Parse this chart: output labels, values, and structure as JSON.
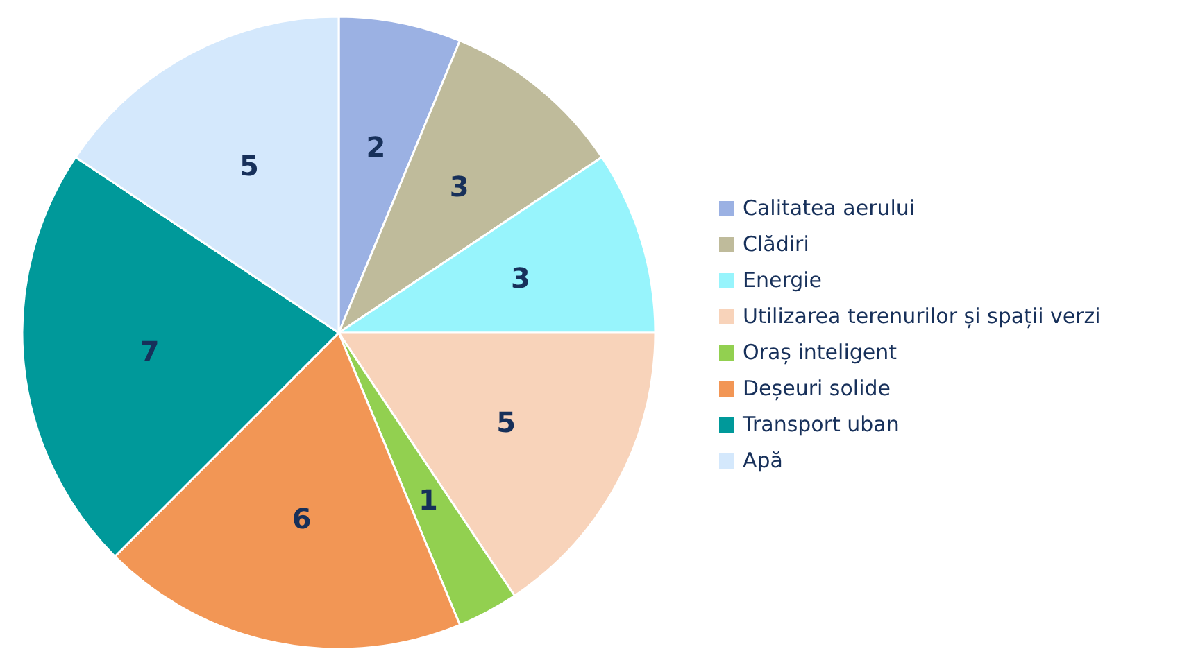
{
  "chart_data": {
    "type": "pie",
    "categories": [
      "Calitatea aerului",
      "Clădiri",
      "Energie",
      "Utilizarea terenurilor și spații verzi",
      "Oraș inteligent",
      "Deșeuri solide",
      "Transport uban",
      "Apă"
    ],
    "values": [
      2,
      3,
      3,
      5,
      1,
      6,
      7,
      5
    ],
    "colors": [
      "#9bb1e3",
      "#bfbb9b",
      "#97f4fc",
      "#f8d3ba",
      "#92d050",
      "#f29655",
      "#00999a",
      "#d4e8fc"
    ],
    "data_labels": true,
    "legend": "right"
  }
}
